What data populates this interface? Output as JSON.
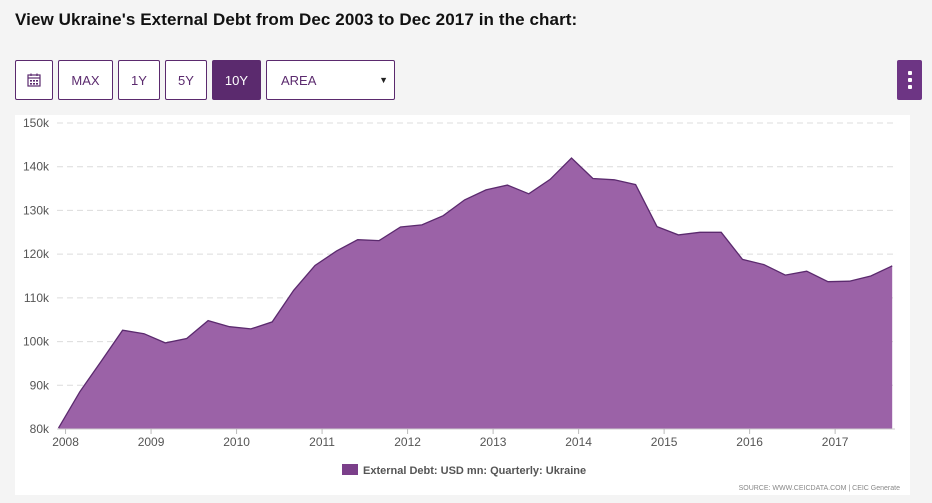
{
  "page": {
    "title": "View Ukraine's External Debt from Dec 2003 to Dec 2017 in the chart:"
  },
  "toolbar": {
    "calendar_icon": "calendar-icon",
    "ranges": [
      "MAX",
      "1Y",
      "5Y",
      "10Y"
    ],
    "active_range": "10Y",
    "chart_type_selected": "AREA",
    "menu_icon": "vertical-dots-icon"
  },
  "colors": {
    "accent": "#5b2a6e",
    "area_fill": "#9b62a7",
    "area_line": "#5b2a6e",
    "legend_swatch": "#7b3f8a"
  },
  "chart_data": {
    "type": "area",
    "x_ticks": [
      "2008",
      "2009",
      "2010",
      "2011",
      "2012",
      "2013",
      "2014",
      "2015",
      "2016",
      "2017"
    ],
    "y_ticks": [
      "80k",
      "90k",
      "100k",
      "110k",
      "120k",
      "130k",
      "140k",
      "150k"
    ],
    "ylim": [
      80000,
      150000
    ],
    "xlim": [
      2007.9,
      2017.7
    ],
    "grid": true,
    "legend_position": "bottom",
    "series": [
      {
        "name": "External Debt: USD mn: Quarterly: Ukraine",
        "points": [
          [
            2007.917,
            80200
          ],
          [
            2008.167,
            88500
          ],
          [
            2008.417,
            95500
          ],
          [
            2008.667,
            102600
          ],
          [
            2008.917,
            101800
          ],
          [
            2009.167,
            99700
          ],
          [
            2009.417,
            100700
          ],
          [
            2009.667,
            104800
          ],
          [
            2009.917,
            103400
          ],
          [
            2010.167,
            102900
          ],
          [
            2010.417,
            104500
          ],
          [
            2010.667,
            111700
          ],
          [
            2010.917,
            117400
          ],
          [
            2011.167,
            120700
          ],
          [
            2011.417,
            123300
          ],
          [
            2011.667,
            123100
          ],
          [
            2011.917,
            126200
          ],
          [
            2012.167,
            126700
          ],
          [
            2012.417,
            128800
          ],
          [
            2012.667,
            132400
          ],
          [
            2012.917,
            134700
          ],
          [
            2013.167,
            135800
          ],
          [
            2013.417,
            133800
          ],
          [
            2013.667,
            137100
          ],
          [
            2013.917,
            142000
          ],
          [
            2014.167,
            137300
          ],
          [
            2014.417,
            137000
          ],
          [
            2014.667,
            135900
          ],
          [
            2014.917,
            126300
          ],
          [
            2015.167,
            124400
          ],
          [
            2015.417,
            125000
          ],
          [
            2015.667,
            125000
          ],
          [
            2015.917,
            118800
          ],
          [
            2016.167,
            117600
          ],
          [
            2016.417,
            115200
          ],
          [
            2016.667,
            116100
          ],
          [
            2016.917,
            113700
          ],
          [
            2017.167,
            113800
          ],
          [
            2017.417,
            115000
          ],
          [
            2017.667,
            117300
          ]
        ]
      }
    ],
    "source": "SOURCE: WWW.CEICDATA.COM | CEIC Generate"
  }
}
